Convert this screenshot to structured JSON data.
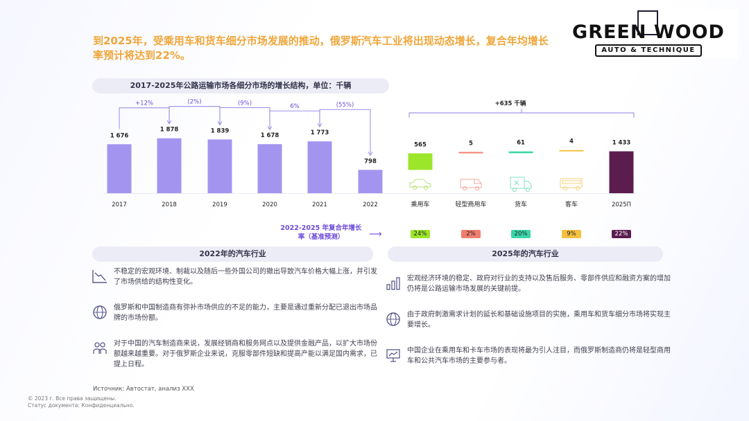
{
  "headline": "到2025年，受乘用车和货车细分市场发展的推动，俄罗斯汽车工业将出现动态增长，复合年均增长率预计将达到22%。",
  "logo": {
    "main": "GREEN WOOD",
    "sub": "AUTO & TECHNIQUE"
  },
  "chart_title": "2017-2025年公路运输市场各细分市场的增长结构，单位：千辆",
  "colors": {
    "bar": "#a395ef",
    "final": "#5b1d4e",
    "passenger": "#9be52a",
    "lcv": "#f07e6e",
    "truck": "#3ad6a8",
    "bus": "#f5c040",
    "accent": "#6d4bd8"
  },
  "chart_data": {
    "type": "bar",
    "title": "2017-2025年公路运输市场各细分市场的增长结构，单位：千辆",
    "history": {
      "categories": [
        "2017",
        "2018",
        "2019",
        "2020",
        "2021",
        "2022"
      ],
      "values": [
        1676,
        1878,
        1839,
        1678,
        1773,
        798
      ],
      "value_labels": [
        "1 676",
        "1 878",
        "1 839",
        "1 678",
        "1 773",
        "798"
      ],
      "changes": [
        "+12%",
        "(2%)",
        "(9%)",
        "6%",
        "(55%)"
      ]
    },
    "waterfall": {
      "total_label": "+635 千辆",
      "categories": [
        "乘用车",
        "轻型商用车",
        "货车",
        "客车"
      ],
      "icons": [
        "car-icon",
        "van-icon",
        "truck-icon",
        "bus-icon"
      ],
      "values": [
        565,
        5,
        61,
        4
      ]
    },
    "final": {
      "category": "2025П",
      "value": 1433,
      "value_label": "1 433"
    },
    "ylim": [
      0,
      2000
    ]
  },
  "cagr": {
    "label": "2022-2025 年复合年增长率（基准预测）",
    "values": [
      "24%",
      "2%",
      "20%",
      "9%",
      "22%"
    ]
  },
  "left_panel": {
    "title": "2022年的汽车行业",
    "items": [
      {
        "icon": "chart-decline-icon",
        "text": "不稳定的宏观环境、制裁以及随后一些外国公司的撤出导致汽车价格大幅上涨，并引发了市场供给的结构性变化。"
      },
      {
        "icon": "globe-icon",
        "text": "俄罗斯和中国制造商有弥补市场供应的不足的能力，主要是通过重新分配已退出市场品牌的市场份额。"
      },
      {
        "icon": "people-icon",
        "text": "对于中国的汽车制造商来说，发展经销商和服务网点以及提供金融产品，以扩大市场份额越来越重要。对于俄罗斯企业来说，克服零部件短缺和提高产能以满足国内需求，已提上日程。"
      }
    ]
  },
  "right_panel": {
    "title": "2025年的汽车行业",
    "items": [
      {
        "icon": "bar-chart-icon",
        "text": "宏观经济环境的稳定、政府对行业的支持以及售后服务、零部件供应和融资方案的增加仍将是公路运输市场发展的关键前提。"
      },
      {
        "icon": "globe-icon",
        "text": "由于政府刺激需求计划的延长和基础设施项目的实施，乘用车和货车细分市场将实现主要增长。"
      },
      {
        "icon": "presentation-icon",
        "text": "中国企业在乘用车和卡车市场的表现将最为引人注目，而俄罗斯制造商仍将是轻型商用车和公共汽车市场的主要参与者。"
      }
    ]
  },
  "source": "Источник: Автостат, анализ XXX",
  "footer": [
    "© 2023 г. Все права защищены.",
    "Статус документа: Конфиденциально."
  ]
}
